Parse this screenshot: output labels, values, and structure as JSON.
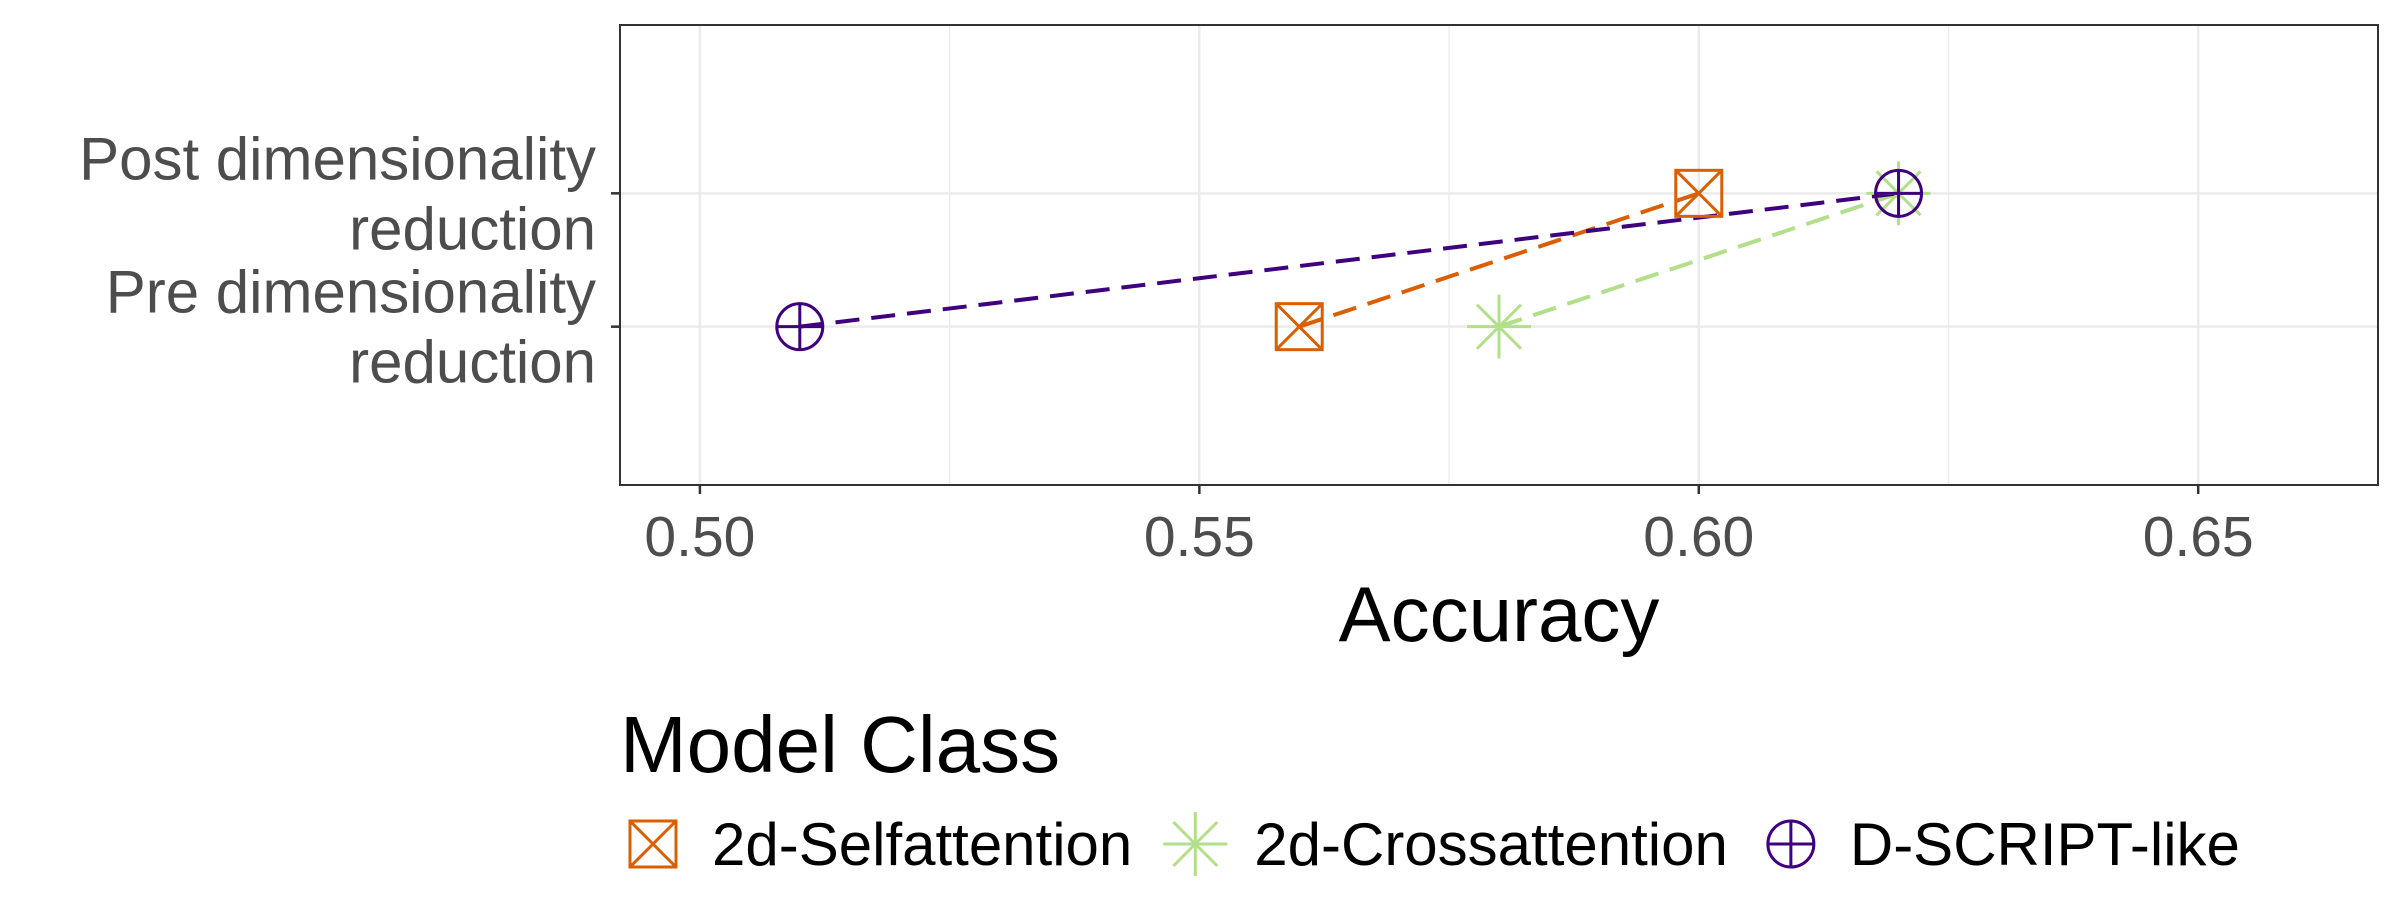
{
  "chart_data": {
    "type": "scatter",
    "title": "",
    "xlabel": "Accuracy",
    "ylabel": "",
    "xlim": [
      0.492,
      0.668
    ],
    "xticks": [
      {
        "value": 0.5,
        "label": "0.50"
      },
      {
        "value": 0.55,
        "label": "0.55"
      },
      {
        "value": 0.6,
        "label": "0.60"
      },
      {
        "value": 0.65,
        "label": "0.65"
      }
    ],
    "categories": [
      {
        "lines": [
          "Post dimensionality",
          "reduction"
        ]
      },
      {
        "lines": [
          "Pre dimensionality",
          "reduction"
        ]
      }
    ],
    "grid": true,
    "legend": {
      "title": "Model Class",
      "position": "bottom"
    },
    "series": [
      {
        "name": "2d-Selfattention",
        "shape": "square-cross",
        "color": "#d95f02",
        "points": [
          {
            "category": "Pre dimensionality reduction",
            "x": 0.56
          },
          {
            "category": "Post dimensionality reduction",
            "x": 0.6
          }
        ]
      },
      {
        "name": "2d-Crossattention",
        "shape": "asterisk",
        "color": "#b2df8a",
        "points": [
          {
            "category": "Pre dimensionality reduction",
            "x": 0.58
          },
          {
            "category": "Post dimensionality reduction",
            "x": 0.62
          }
        ]
      },
      {
        "name": "D-SCRIPT-like",
        "shape": "circle-plus",
        "color": "#3f007d",
        "points": [
          {
            "category": "Pre dimensionality reduction",
            "x": 0.51
          },
          {
            "category": "Post dimensionality reduction",
            "x": 0.62
          }
        ]
      }
    ]
  }
}
